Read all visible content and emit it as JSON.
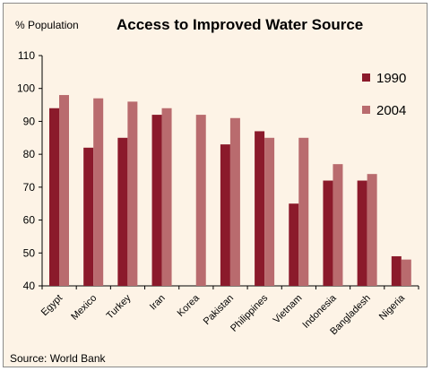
{
  "chart_data": {
    "type": "bar",
    "title": "Access to Improved Water Source",
    "ylabel": "% Population",
    "source": "Source: World Bank",
    "ylim": [
      40,
      110
    ],
    "yticks": [
      40,
      50,
      60,
      70,
      80,
      90,
      100,
      110
    ],
    "grid": false,
    "legend_position": "top-right",
    "categories": [
      "Egypt",
      "Mexico",
      "Turkey",
      "Iran",
      "Korea",
      "Pakistan",
      "Philippines",
      "Vietnam",
      "Indonesia",
      "Bangladesh",
      "Nigeria"
    ],
    "series": [
      {
        "name": "1990",
        "color": "#8b1a2b",
        "values": [
          94,
          82,
          85,
          92,
          null,
          83,
          87,
          65,
          72,
          72,
          49
        ]
      },
      {
        "name": "2004",
        "color": "#b96b6e",
        "values": [
          98,
          97,
          96,
          94,
          92,
          91,
          85,
          85,
          77,
          74,
          48
        ]
      }
    ]
  }
}
